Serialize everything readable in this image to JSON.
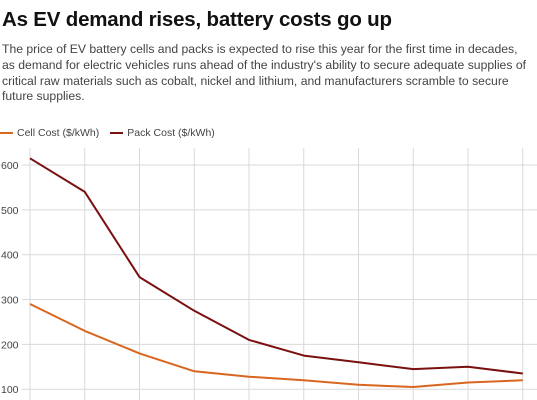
{
  "header": {
    "title": "As EV demand rises, battery costs go up",
    "subtitle": "The price of EV battery cells and packs is expected to rise this year for the first time in decades, as demand for electric vehicles runs ahead of the industry's ability to secure adequate supplies of critical raw materials such as cobalt, nickel and lithium, and manufacturers scramble to secure future supplies."
  },
  "colors": {
    "cell": "#d9661f",
    "pack": "#7a1010",
    "grid": "#d9d9d9"
  },
  "chart_data": {
    "type": "line",
    "title": "As EV demand rises, battery costs go up",
    "xlabel": "",
    "ylabel": "",
    "ylim": [
      76,
      638
    ],
    "yticks": [
      100,
      200,
      300,
      400,
      500,
      600
    ],
    "grid": true,
    "legend_position": "top-left",
    "x": [
      0,
      1,
      2,
      3,
      4,
      5,
      6,
      7,
      8,
      9
    ],
    "series": [
      {
        "name": "Cell Cost ($/kWh)",
        "color": "#d9661f",
        "values": [
          290,
          230,
          180,
          140,
          128,
          120,
          110,
          105,
          115,
          120
        ]
      },
      {
        "name": "Pack Cost ($/kWh)",
        "color": "#7a1010",
        "values": [
          615,
          540,
          350,
          275,
          210,
          175,
          160,
          145,
          150,
          135
        ]
      }
    ]
  }
}
